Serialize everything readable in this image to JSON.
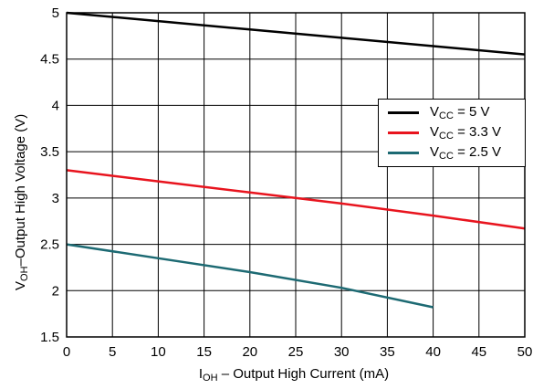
{
  "chart_data": {
    "type": "line",
    "xlabel_main": "I",
    "xlabel_sub": "OH",
    "xlabel_rest": " – Output High Current (mA)",
    "ylabel_main": "V",
    "ylabel_sub": "OH",
    "ylabel_rest": "–Output High Voltage (V)",
    "xlim": [
      0,
      50
    ],
    "ylim": [
      1.5,
      5
    ],
    "x_ticks": [
      "0",
      "5",
      "10",
      "15",
      "20",
      "25",
      "30",
      "35",
      "40",
      "45",
      "50"
    ],
    "y_ticks": [
      "1.5",
      "2",
      "2.5",
      "3",
      "3.5",
      "4",
      "4.5",
      "5"
    ],
    "grid": true,
    "legend_position": "top-right",
    "series": [
      {
        "name_main": "V",
        "name_sub": "CC",
        "name_rest": " = 5 V",
        "color": "#000000",
        "x": [
          0,
          10,
          20,
          30,
          40,
          50
        ],
        "y": [
          5.0,
          4.91,
          4.82,
          4.73,
          4.64,
          4.55
        ]
      },
      {
        "name_main": "V",
        "name_sub": "CC",
        "name_rest": " = 3.3 V",
        "color": "#e8141e",
        "x": [
          0,
          10,
          20,
          30,
          40,
          50
        ],
        "y": [
          3.3,
          3.18,
          3.06,
          2.94,
          2.81,
          2.67
        ]
      },
      {
        "name_main": "V",
        "name_sub": "CC",
        "name_rest": " = 2.5 V",
        "color": "#1d6a73",
        "x": [
          0,
          10,
          20,
          30,
          40
        ],
        "y": [
          2.5,
          2.35,
          2.2,
          2.03,
          1.82
        ]
      }
    ]
  }
}
